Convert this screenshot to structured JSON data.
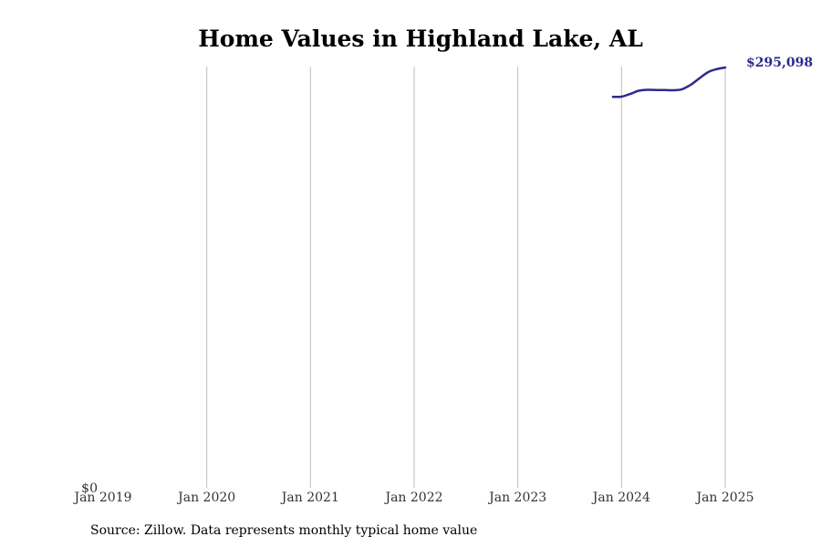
{
  "chart_data": {
    "type": "line",
    "title": "Home Values in Highland Lake, AL",
    "source": "Source: Zillow. Data represents monthly typical home value",
    "xlabel": "",
    "ylabel": "",
    "x_ticks": [
      "Jan 2019",
      "Jan 2020",
      "Jan 2021",
      "Jan 2022",
      "Jan 2023",
      "Jan 2024",
      "Jan 2025"
    ],
    "x_range": [
      "2019-01",
      "2025-01"
    ],
    "y_ticks": [
      "$0"
    ],
    "ylim": [
      0,
      295098
    ],
    "grid": "vertical",
    "series": [
      {
        "color": "#2e2a8c",
        "points": [
          {
            "x": "2023-12",
            "y": 274500
          },
          {
            "x": "2024-01",
            "y": 274600
          },
          {
            "x": "2024-02",
            "y": 276500
          },
          {
            "x": "2024-03",
            "y": 278800
          },
          {
            "x": "2024-04",
            "y": 279400
          },
          {
            "x": "2024-05",
            "y": 279300
          },
          {
            "x": "2024-06",
            "y": 279200
          },
          {
            "x": "2024-07",
            "y": 279100
          },
          {
            "x": "2024-08",
            "y": 279800
          },
          {
            "x": "2024-09",
            "y": 282900
          },
          {
            "x": "2024-10",
            "y": 287400
          },
          {
            "x": "2024-11",
            "y": 291800
          },
          {
            "x": "2024-12",
            "y": 293900
          },
          {
            "x": "2025-01",
            "y": 295098
          }
        ]
      }
    ],
    "end_label": "$295,098"
  }
}
